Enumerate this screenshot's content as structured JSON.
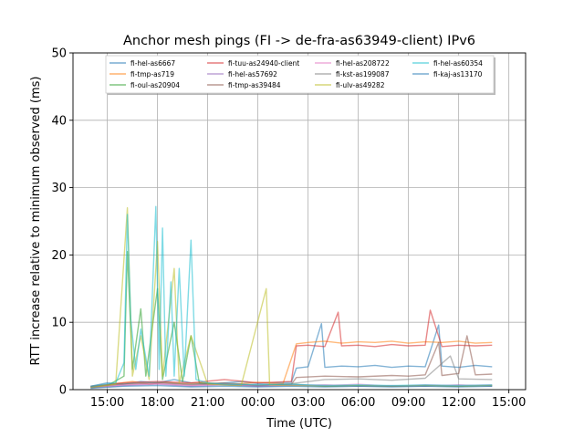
{
  "chart_data": {
    "type": "line",
    "title": "Anchor mesh pings (FI -> de-fra-as63949-client) IPv6",
    "xlabel": "Time (UTC)",
    "ylabel": "RTT increase relative to minimum observed (ms)",
    "x_tick_labels": [
      "15:00",
      "18:00",
      "21:00",
      "00:00",
      "03:00",
      "06:00",
      "09:00",
      "12:00",
      "15:00"
    ],
    "x_tick_hours": [
      15,
      18,
      21,
      24,
      27,
      30,
      33,
      36,
      39
    ],
    "xlim_hours": [
      12.95,
      40.0
    ],
    "ylim": [
      0,
      50
    ],
    "y_ticks": [
      0,
      10,
      20,
      30,
      40,
      50
    ],
    "grid": true,
    "legend_placement": "upper-center",
    "legend_columns": 4,
    "series": [
      {
        "name": "fi-hel-as6667",
        "color": "#1f77b4",
        "points": [
          [
            14.0,
            0.5
          ],
          [
            15.0,
            1.0
          ],
          [
            16.0,
            0.8
          ],
          [
            17.0,
            1.2
          ],
          [
            18.0,
            1.0
          ],
          [
            19.0,
            1.5
          ],
          [
            20.0,
            1.0
          ],
          [
            21.0,
            0.8
          ],
          [
            22.0,
            1.0
          ],
          [
            23.0,
            1.2
          ],
          [
            24.0,
            0.9
          ],
          [
            25.0,
            1.0
          ],
          [
            26.0,
            1.1
          ],
          [
            26.3,
            3.2
          ],
          [
            27.0,
            3.4
          ],
          [
            27.8,
            9.8
          ],
          [
            28.0,
            3.3
          ],
          [
            29.0,
            3.5
          ],
          [
            30.0,
            3.4
          ],
          [
            31.0,
            3.6
          ],
          [
            32.0,
            3.3
          ],
          [
            33.0,
            3.5
          ],
          [
            34.0,
            3.4
          ],
          [
            34.8,
            9.6
          ],
          [
            35.0,
            3.5
          ],
          [
            36.0,
            3.3
          ],
          [
            37.0,
            3.6
          ],
          [
            38.0,
            3.4
          ]
        ]
      },
      {
        "name": "fi-tmp-as719",
        "color": "#ff7f0e",
        "points": [
          [
            14.0,
            0.4
          ],
          [
            15.5,
            0.9
          ],
          [
            16.5,
            1.2
          ],
          [
            17.5,
            0.8
          ],
          [
            18.5,
            1.1
          ],
          [
            19.5,
            0.9
          ],
          [
            21.0,
            1.0
          ],
          [
            22.5,
            0.8
          ],
          [
            24.0,
            1.1
          ],
          [
            25.5,
            0.9
          ],
          [
            26.3,
            6.8
          ],
          [
            27.0,
            7.0
          ],
          [
            28.0,
            7.2
          ],
          [
            29.0,
            6.9
          ],
          [
            30.0,
            7.1
          ],
          [
            31.0,
            7.0
          ],
          [
            32.0,
            7.2
          ],
          [
            33.0,
            6.9
          ],
          [
            34.0,
            7.1
          ],
          [
            35.0,
            7.0
          ],
          [
            36.0,
            7.2
          ],
          [
            37.0,
            6.9
          ],
          [
            38.0,
            7.0
          ]
        ]
      },
      {
        "name": "fi-oul-as20904",
        "color": "#2ca02c",
        "points": [
          [
            14.0,
            0.3
          ],
          [
            15.0,
            0.6
          ],
          [
            16.0,
            2.0
          ],
          [
            16.2,
            20.5
          ],
          [
            16.5,
            3.0
          ],
          [
            17.0,
            12.0
          ],
          [
            17.3,
            2.0
          ],
          [
            18.0,
            15.0
          ],
          [
            18.3,
            1.5
          ],
          [
            19.0,
            10.0
          ],
          [
            19.5,
            1.2
          ],
          [
            20.0,
            8.0
          ],
          [
            20.5,
            1.0
          ],
          [
            22.0,
            0.7
          ],
          [
            24.0,
            0.6
          ],
          [
            26.0,
            0.8
          ],
          [
            28.0,
            0.5
          ],
          [
            30.0,
            0.6
          ],
          [
            32.0,
            0.5
          ],
          [
            34.0,
            0.6
          ],
          [
            36.0,
            0.5
          ],
          [
            38.0,
            0.6
          ]
        ]
      },
      {
        "name": "fi-tuu-as24940-client",
        "color": "#d62728",
        "points": [
          [
            14.0,
            0.5
          ],
          [
            16.0,
            1.0
          ],
          [
            18.0,
            1.2
          ],
          [
            20.0,
            1.0
          ],
          [
            22.0,
            1.5
          ],
          [
            24.0,
            1.0
          ],
          [
            26.0,
            1.2
          ],
          [
            26.3,
            6.5
          ],
          [
            27.0,
            6.6
          ],
          [
            28.0,
            6.4
          ],
          [
            28.8,
            11.5
          ],
          [
            29.0,
            6.5
          ],
          [
            30.0,
            6.6
          ],
          [
            31.0,
            6.4
          ],
          [
            32.0,
            6.7
          ],
          [
            33.0,
            6.5
          ],
          [
            34.0,
            6.6
          ],
          [
            34.3,
            11.8
          ],
          [
            35.0,
            6.4
          ],
          [
            36.0,
            6.6
          ],
          [
            37.0,
            6.5
          ],
          [
            38.0,
            6.6
          ]
        ]
      },
      {
        "name": "fi-hel-as57692",
        "color": "#9467bd",
        "points": [
          [
            14.0,
            0.3
          ],
          [
            16.0,
            0.6
          ],
          [
            18.0,
            0.8
          ],
          [
            20.0,
            0.5
          ],
          [
            22.0,
            0.7
          ],
          [
            24.0,
            0.5
          ],
          [
            26.0,
            0.6
          ],
          [
            28.0,
            0.7
          ],
          [
            30.0,
            0.5
          ],
          [
            32.0,
            0.6
          ],
          [
            34.0,
            0.5
          ],
          [
            36.0,
            0.7
          ],
          [
            38.0,
            0.5
          ]
        ]
      },
      {
        "name": "fi-tmp-as39484",
        "color": "#8c564b",
        "points": [
          [
            14.0,
            0.4
          ],
          [
            16.0,
            0.8
          ],
          [
            18.0,
            1.0
          ],
          [
            20.0,
            0.7
          ],
          [
            22.0,
            0.9
          ],
          [
            24.0,
            0.6
          ],
          [
            26.0,
            0.8
          ],
          [
            26.3,
            1.8
          ],
          [
            28.0,
            2.0
          ],
          [
            30.0,
            1.9
          ],
          [
            32.0,
            2.1
          ],
          [
            33.0,
            2.0
          ],
          [
            34.0,
            2.2
          ],
          [
            34.8,
            7.0
          ],
          [
            35.0,
            2.1
          ],
          [
            36.0,
            2.4
          ],
          [
            36.5,
            8.0
          ],
          [
            37.0,
            2.2
          ],
          [
            38.0,
            2.3
          ]
        ]
      },
      {
        "name": "fi-hel-as208722",
        "color": "#e377c2",
        "points": [
          [
            14.0,
            0.3
          ],
          [
            16.0,
            0.7
          ],
          [
            18.0,
            0.9
          ],
          [
            20.0,
            0.6
          ],
          [
            22.0,
            0.8
          ],
          [
            24.0,
            0.5
          ],
          [
            26.0,
            0.7
          ],
          [
            28.0,
            0.6
          ],
          [
            30.0,
            0.8
          ],
          [
            32.0,
            0.5
          ],
          [
            34.0,
            0.7
          ],
          [
            36.0,
            0.6
          ],
          [
            38.0,
            0.7
          ]
        ]
      },
      {
        "name": "fi-kst-as199087",
        "color": "#7f7f7f",
        "points": [
          [
            14.0,
            0.4
          ],
          [
            16.0,
            0.9
          ],
          [
            18.0,
            1.1
          ],
          [
            20.0,
            0.8
          ],
          [
            22.0,
            1.0
          ],
          [
            24.0,
            0.7
          ],
          [
            26.0,
            0.9
          ],
          [
            28.0,
            1.5
          ],
          [
            30.0,
            1.6
          ],
          [
            32.0,
            1.4
          ],
          [
            34.0,
            1.7
          ],
          [
            35.5,
            5.0
          ],
          [
            36.0,
            1.6
          ],
          [
            38.0,
            1.5
          ]
        ]
      },
      {
        "name": "fi-ulv-as49282",
        "color": "#bcbd22",
        "points": [
          [
            14.0,
            0.3
          ],
          [
            15.5,
            0.8
          ],
          [
            16.2,
            27.0
          ],
          [
            16.5,
            2.0
          ],
          [
            17.0,
            8.0
          ],
          [
            17.5,
            1.5
          ],
          [
            18.0,
            22.0
          ],
          [
            18.3,
            2.0
          ],
          [
            19.0,
            18.0
          ],
          [
            19.3,
            1.0
          ],
          [
            20.0,
            8.0
          ],
          [
            21.0,
            0.8
          ],
          [
            23.0,
            0.6
          ],
          [
            24.5,
            15.0
          ],
          [
            24.7,
            0.7
          ],
          [
            26.0,
            0.6
          ],
          [
            28.0,
            0.5
          ],
          [
            30.0,
            0.6
          ],
          [
            32.0,
            0.5
          ],
          [
            34.0,
            0.6
          ],
          [
            36.0,
            0.5
          ],
          [
            38.0,
            0.6
          ]
        ]
      },
      {
        "name": "fi-hel-as60354",
        "color": "#17becf",
        "points": [
          [
            14.0,
            0.5
          ],
          [
            15.5,
            1.0
          ],
          [
            16.0,
            4.0
          ],
          [
            16.2,
            26.0
          ],
          [
            16.4,
            10.5
          ],
          [
            16.7,
            3.0
          ],
          [
            17.0,
            9.0
          ],
          [
            17.5,
            2.0
          ],
          [
            17.9,
            27.2
          ],
          [
            18.1,
            3.0
          ],
          [
            18.3,
            24.0
          ],
          [
            18.5,
            2.0
          ],
          [
            18.8,
            16.0
          ],
          [
            19.0,
            2.0
          ],
          [
            19.3,
            18.0
          ],
          [
            19.6,
            2.0
          ],
          [
            20.0,
            22.2
          ],
          [
            20.3,
            1.5
          ],
          [
            21.0,
            1.0
          ],
          [
            22.0,
            0.8
          ],
          [
            24.0,
            0.7
          ],
          [
            26.0,
            0.8
          ],
          [
            28.0,
            0.6
          ],
          [
            30.0,
            0.7
          ],
          [
            32.0,
            0.6
          ],
          [
            34.0,
            0.7
          ],
          [
            36.0,
            0.6
          ],
          [
            38.0,
            0.7
          ]
        ]
      },
      {
        "name": "fi-kaj-as13170",
        "color": "#1f77b4",
        "points": [
          [
            14.0,
            0.2
          ],
          [
            16.0,
            0.5
          ],
          [
            18.0,
            0.6
          ],
          [
            20.0,
            0.4
          ],
          [
            22.0,
            0.5
          ],
          [
            24.0,
            0.4
          ],
          [
            26.0,
            0.5
          ],
          [
            28.0,
            0.4
          ],
          [
            30.0,
            0.5
          ],
          [
            32.0,
            0.4
          ],
          [
            34.0,
            0.5
          ],
          [
            36.0,
            0.4
          ],
          [
            38.0,
            0.5
          ]
        ]
      }
    ]
  }
}
